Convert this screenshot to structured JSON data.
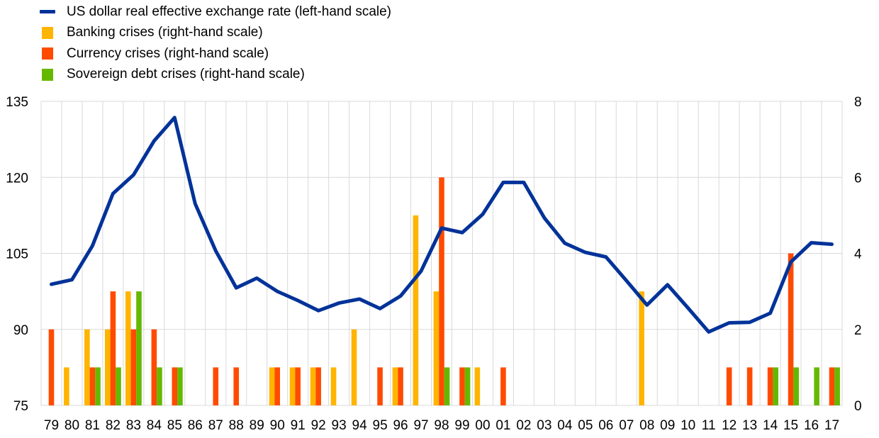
{
  "legend": {
    "line_label": "US dollar real effective exchange rate (left-hand scale)",
    "banking_label": "Banking crises (right-hand scale)",
    "currency_label": "Currency crises (right-hand scale)",
    "sovereign_label": "Sovereign debt crises (right-hand scale)"
  },
  "colors": {
    "line": "#003299",
    "banking": "#FFB400",
    "currency": "#FF4B00",
    "sovereign": "#65B800",
    "grid": "#d9d9d9"
  },
  "chart_data": {
    "type": "bar",
    "categories": [
      "79",
      "80",
      "81",
      "82",
      "83",
      "84",
      "85",
      "86",
      "87",
      "88",
      "89",
      "90",
      "91",
      "92",
      "93",
      "94",
      "95",
      "96",
      "97",
      "98",
      "99",
      "00",
      "01",
      "02",
      "03",
      "04",
      "05",
      "06",
      "07",
      "08",
      "09",
      "10",
      "11",
      "12",
      "13",
      "14",
      "15",
      "16",
      "17"
    ],
    "left_axis": {
      "ylim": [
        75,
        135
      ],
      "ticks": [
        "75",
        "90",
        "105",
        "120",
        "135"
      ]
    },
    "right_axis": {
      "ylim": [
        0,
        8
      ],
      "ticks": [
        "0",
        "2",
        "4",
        "6",
        "8"
      ]
    },
    "grid": true,
    "legend_position": "top-left",
    "series": [
      {
        "name": "US dollar real effective exchange rate (left-hand scale)",
        "type": "line",
        "axis": "left",
        "values": [
          98.9,
          99.8,
          106.5,
          116.8,
          120.5,
          127.2,
          131.8,
          114.8,
          105.5,
          98.2,
          100.1,
          97.5,
          95.7,
          93.7,
          95.2,
          96.0,
          94.1,
          96.6,
          101.5,
          110.0,
          109.1,
          112.7,
          119.0,
          119.0,
          112.0,
          107.0,
          105.2,
          104.3,
          99.6,
          94.8,
          98.8,
          94.2,
          89.5,
          91.3,
          91.4,
          93.2,
          103.3,
          107.1,
          106.8
        ]
      },
      {
        "name": "Banking crises (right-hand scale)",
        "type": "bar",
        "axis": "right",
        "values": [
          0,
          1,
          2,
          2,
          3,
          0,
          0,
          0,
          0,
          0,
          0,
          1,
          1,
          1,
          1,
          2,
          0,
          1,
          5,
          3,
          0,
          1,
          0,
          0,
          0,
          0,
          0,
          0,
          0,
          3,
          0,
          0,
          0,
          0,
          0,
          0,
          0,
          0,
          0
        ]
      },
      {
        "name": "Currency crises (right-hand scale)",
        "type": "bar",
        "axis": "right",
        "values": [
          2,
          0,
          1,
          3,
          2,
          2,
          1,
          0,
          1,
          1,
          0,
          1,
          1,
          1,
          0,
          0,
          1,
          1,
          0,
          6,
          1,
          0,
          1,
          0,
          0,
          0,
          0,
          0,
          0,
          0,
          0,
          0,
          0,
          1,
          1,
          1,
          4,
          0,
          1
        ]
      },
      {
        "name": "Sovereign debt crises (right-hand scale)",
        "type": "bar",
        "axis": "right",
        "values": [
          0,
          0,
          1,
          1,
          3,
          1,
          1,
          0,
          0,
          0,
          0,
          0,
          0,
          0,
          0,
          0,
          0,
          0,
          0,
          1,
          1,
          0,
          0,
          0,
          0,
          0,
          0,
          0,
          0,
          0,
          0,
          0,
          0,
          0,
          0,
          1,
          1,
          1,
          1
        ]
      }
    ]
  }
}
